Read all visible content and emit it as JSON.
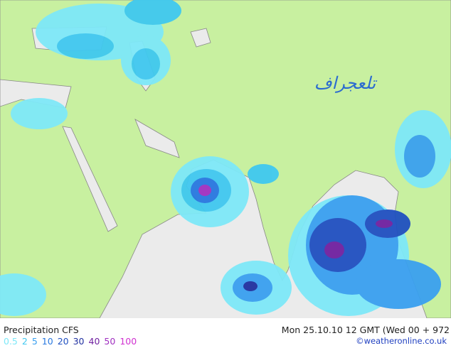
{
  "map": {
    "watermark": "تلعجراف"
  },
  "footer": {
    "title": "Precipitation CFS",
    "timestamp": "Mon 25.10.10 12 GMT (Wed 00 + 972",
    "legend": [
      {
        "label": "0.5",
        "color": "#7ee8f8"
      },
      {
        "label": "2",
        "color": "#40c8f0"
      },
      {
        "label": "5",
        "color": "#3aa0f0"
      },
      {
        "label": "10",
        "color": "#2878e0"
      },
      {
        "label": "20",
        "color": "#2050c0"
      },
      {
        "label": "30",
        "color": "#2030a0"
      },
      {
        "label": "40",
        "color": "#7020a0"
      },
      {
        "label": "50",
        "color": "#a030c0"
      },
      {
        "label": "100",
        "color": "#d030d0"
      }
    ],
    "credit": "©weatheronline.co.uk"
  }
}
